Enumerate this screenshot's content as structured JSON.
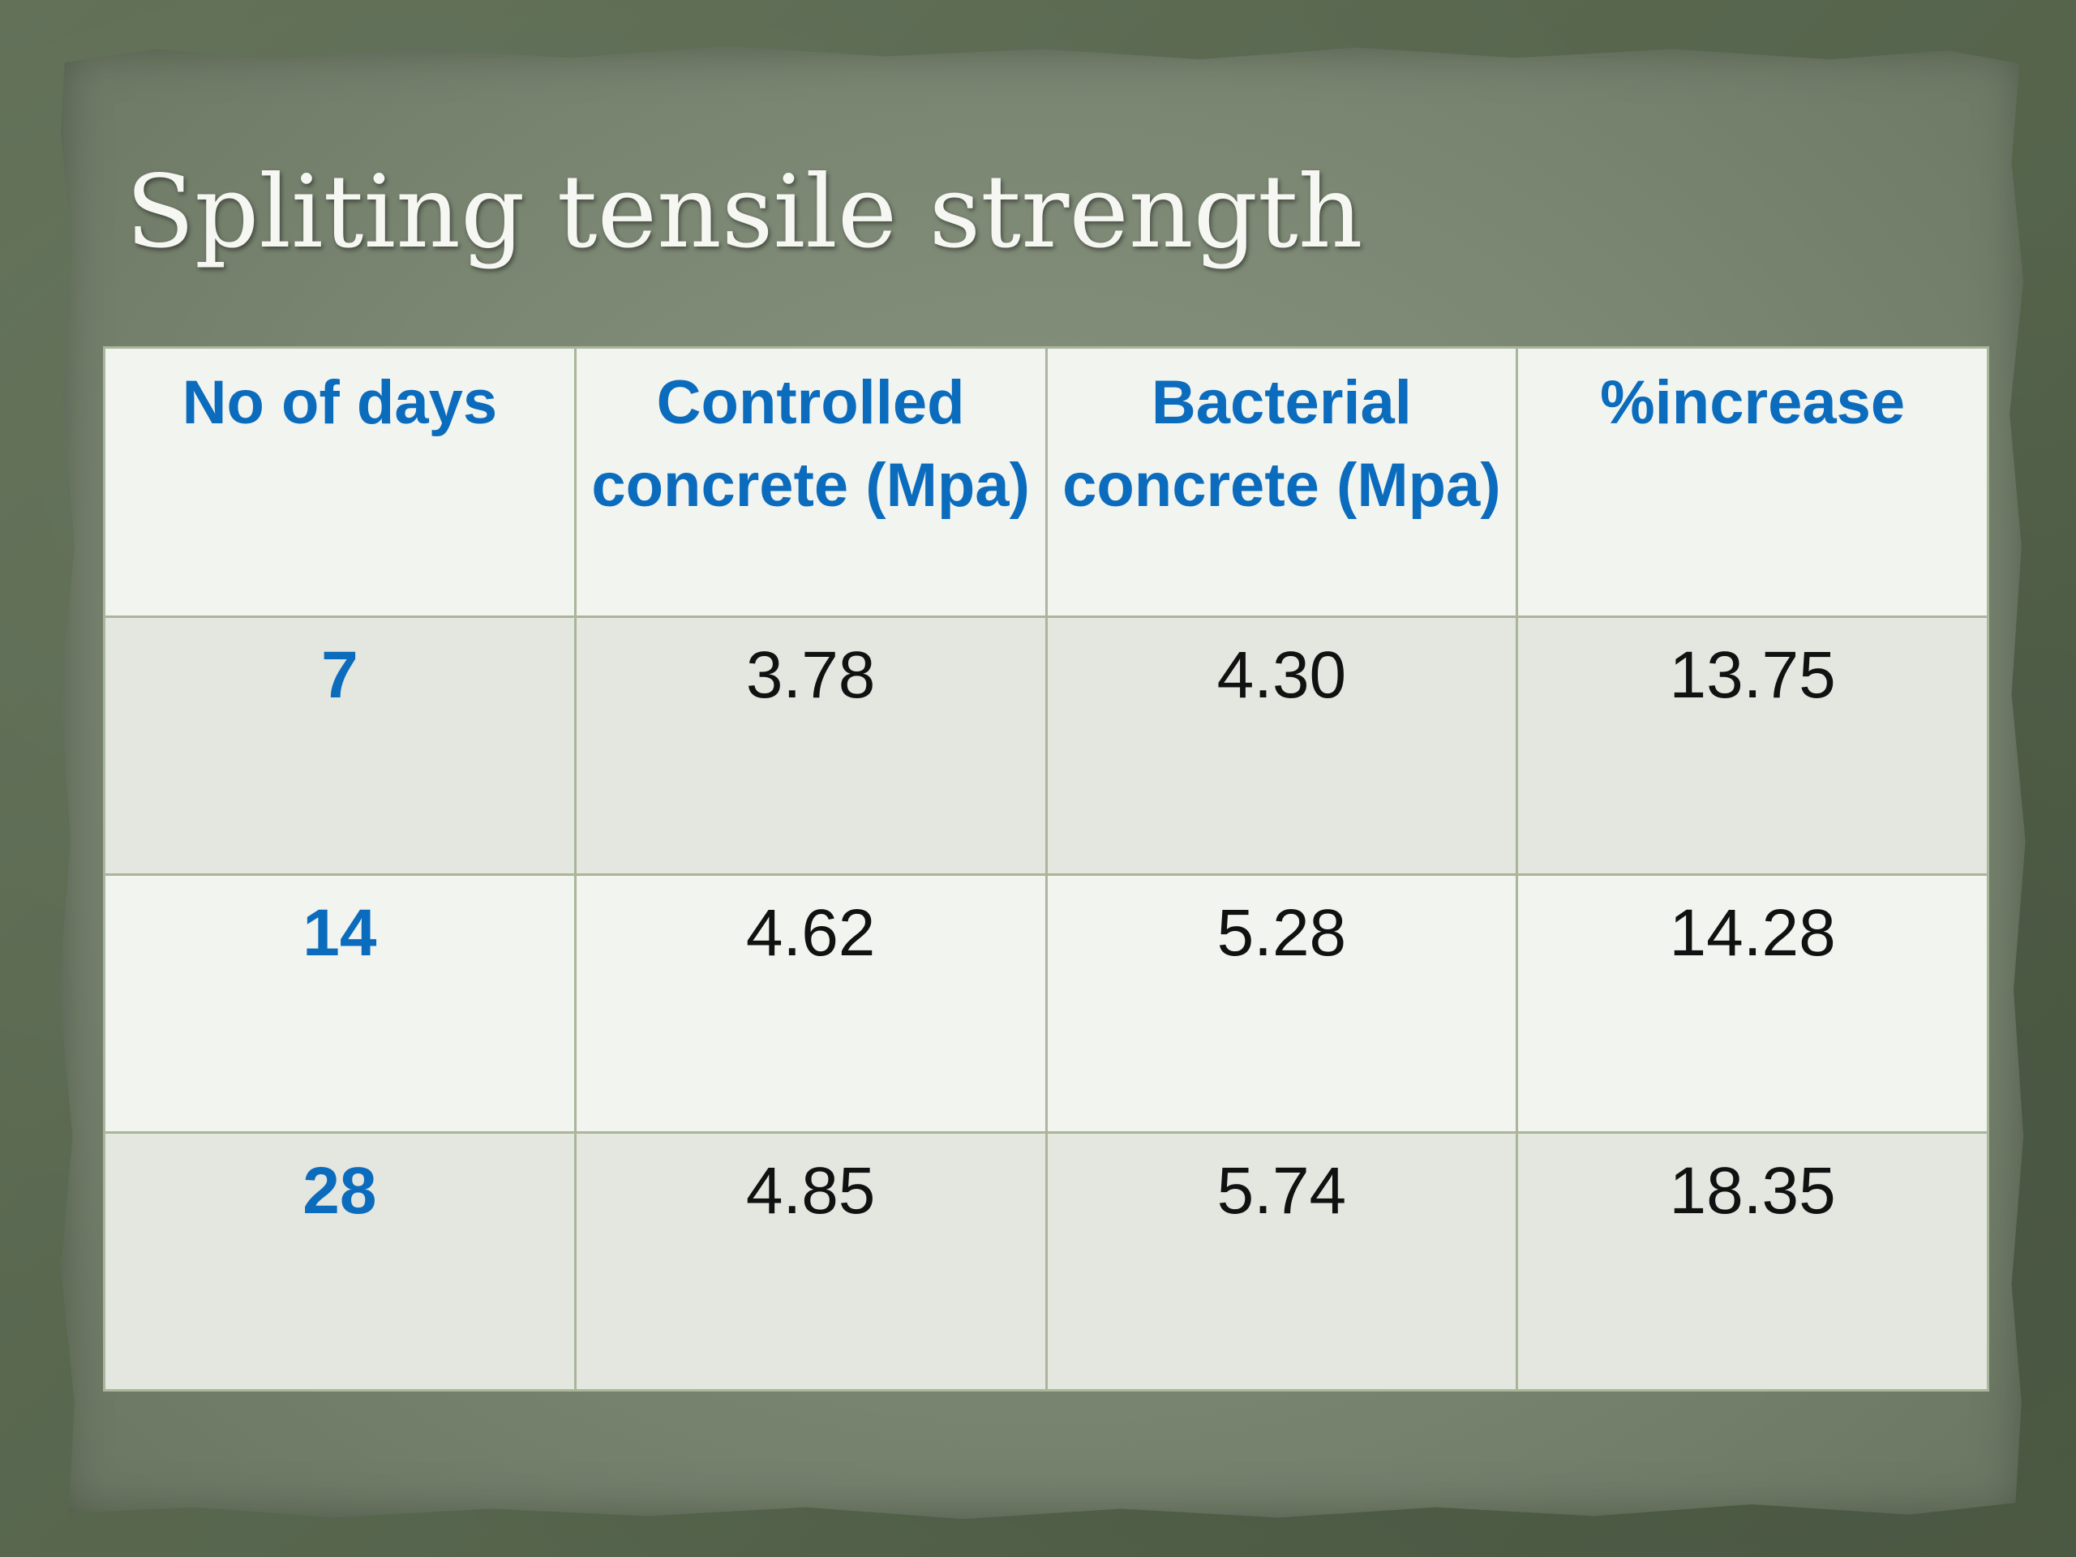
{
  "title": "Spliting tensile strength",
  "table": {
    "headers": [
      "No of days",
      "Controlled concrete (Mpa)",
      "Bacterial concrete (Mpa)",
      "%increase"
    ],
    "rows": [
      {
        "days": "7",
        "controlled": "3.78",
        "bacterial": "4.30",
        "increase": "13.75"
      },
      {
        "days": "14",
        "controlled": "4.62",
        "bacterial": "5.28",
        "increase": "14.28"
      },
      {
        "days": "28",
        "controlled": "4.85",
        "bacterial": "5.74",
        "increase": "18.35"
      }
    ]
  },
  "colors": {
    "header_text": "#0b6bbd",
    "paper": "#7a8672",
    "background": "#59684f"
  }
}
